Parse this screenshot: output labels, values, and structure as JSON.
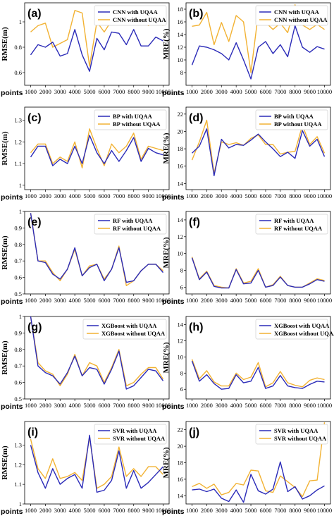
{
  "colors": {
    "with": "#2b2bb8",
    "without": "#f2b233"
  },
  "chart_data": [
    {
      "type": "line",
      "label": "(a)",
      "ylabel": "RMSE(m)",
      "xlabel": "points",
      "x": [
        1000,
        1500,
        2000,
        2500,
        3000,
        3500,
        4000,
        4500,
        5000,
        5500,
        6000,
        6500,
        7000,
        7500,
        8000,
        8500,
        9000,
        9500,
        10000
      ],
      "xticks": [
        1000,
        2000,
        3000,
        4000,
        5000,
        6000,
        7000,
        8000,
        9000,
        10000
      ],
      "ylim": [
        0.5,
        1.15
      ],
      "yticks": [
        0.6,
        0.8,
        1.0
      ],
      "legend": "top-right",
      "series": [
        {
          "name": "CNN with UQAA",
          "color_key": "with",
          "values": [
            0.74,
            0.82,
            0.8,
            0.84,
            0.73,
            0.75,
            0.94,
            0.74,
            0.61,
            0.87,
            0.78,
            0.92,
            0.91,
            0.82,
            0.94,
            0.81,
            0.81,
            0.88,
            0.85
          ]
        },
        {
          "name": "CNN without UQAA",
          "color_key": "without",
          "values": [
            0.92,
            0.97,
            0.99,
            0.8,
            0.83,
            0.86,
            1.09,
            1.07,
            0.65,
            1.0,
            0.92,
            1.01,
            0.99,
            0.98,
            1.08,
            1.03,
            0.97,
            1.02,
            0.97
          ]
        }
      ]
    },
    {
      "type": "line",
      "label": "(b)",
      "ylabel": "MRE(%)",
      "xlabel": "points",
      "x": [
        1000,
        1500,
        2000,
        2500,
        3000,
        3500,
        4000,
        4500,
        5000,
        5500,
        6000,
        6500,
        7000,
        7500,
        8000,
        8500,
        9000,
        9500,
        10000
      ],
      "xticks": [
        1000,
        2000,
        3000,
        4000,
        5000,
        6000,
        7000,
        8000,
        9000,
        10000
      ],
      "ylim": [
        6,
        19
      ],
      "yticks": [
        8,
        10,
        12,
        14,
        16,
        18
      ],
      "legend": "top-right",
      "series": [
        {
          "name": "CNN with UQAA",
          "color_key": "with",
          "values": [
            9.2,
            12.2,
            12.0,
            11.6,
            11.0,
            10.0,
            12.7,
            10.0,
            7.0,
            12.0,
            12.9,
            11.0,
            12.4,
            10.5,
            15.4,
            12.0,
            11.2,
            12.1,
            11.7
          ]
        },
        {
          "name": "CNN without UQAA",
          "color_key": "without",
          "values": [
            15.3,
            15.5,
            17.5,
            12.4,
            15.9,
            12.9,
            17.0,
            16.0,
            8.0,
            17.3,
            15.9,
            14.8,
            15.8,
            14.3,
            18.7,
            15.5,
            14.8,
            15.6,
            14.8
          ]
        }
      ]
    },
    {
      "type": "line",
      "label": "(c)",
      "ylabel": "RMSE(m)",
      "xlabel": "points",
      "x": [
        1000,
        1500,
        2000,
        2500,
        3000,
        3500,
        4000,
        4500,
        5000,
        5500,
        6000,
        6500,
        7000,
        7500,
        8000,
        8500,
        9000,
        9500,
        10000
      ],
      "xticks": [
        1000,
        2000,
        3000,
        4000,
        5000,
        6000,
        7000,
        8000,
        9000,
        10000
      ],
      "ylim": [
        0.98,
        1.36
      ],
      "yticks": [
        1.0,
        1.1,
        1.2,
        1.3
      ],
      "legend": "top-right",
      "series": [
        {
          "name": "BP with UQAA",
          "color_key": "with",
          "values": [
            1.13,
            1.18,
            1.18,
            1.09,
            1.12,
            1.1,
            1.18,
            1.1,
            1.23,
            1.15,
            1.1,
            1.16,
            1.11,
            1.16,
            1.22,
            1.11,
            1.17,
            1.15,
            1.14
          ]
        },
        {
          "name": "BP without UQAA",
          "color_key": "without",
          "values": [
            1.15,
            1.19,
            1.19,
            1.1,
            1.13,
            1.11,
            1.2,
            1.08,
            1.26,
            1.17,
            1.09,
            1.19,
            1.15,
            1.18,
            1.24,
            1.12,
            1.18,
            1.17,
            1.16
          ]
        }
      ]
    },
    {
      "type": "line",
      "label": "(d)",
      "ylabel": "MRE(%)",
      "xlabel": "points",
      "x": [
        1000,
        1500,
        2000,
        2500,
        3000,
        3500,
        4000,
        4500,
        5000,
        5500,
        6000,
        6500,
        7000,
        7500,
        8000,
        8500,
        9000,
        9500,
        10000
      ],
      "xticks": [
        1000,
        2000,
        3000,
        4000,
        5000,
        6000,
        7000,
        8000,
        9000,
        10000
      ],
      "ylim": [
        13.3,
        22.8
      ],
      "yticks": [
        14,
        16,
        18,
        20,
        22
      ],
      "legend": "top-right",
      "series": [
        {
          "name": "BP with UQAA",
          "color_key": "with",
          "values": [
            17.5,
            18.3,
            20.3,
            14.9,
            19.1,
            18.1,
            18.5,
            18.4,
            19.0,
            19.7,
            18.8,
            18.0,
            17.1,
            17.6,
            16.9,
            20.1,
            18.3,
            19.1,
            17.1
          ]
        },
        {
          "name": "BP without UQAA",
          "color_key": "without",
          "values": [
            16.7,
            18.8,
            21.3,
            15.2,
            18.8,
            18.5,
            18.7,
            18.4,
            19.2,
            19.6,
            18.5,
            18.5,
            17.4,
            17.6,
            17.7,
            20.7,
            18.5,
            19.4,
            17.5
          ]
        }
      ]
    },
    {
      "type": "line",
      "label": "(e)",
      "ylabel": "RMSE(m)",
      "xlabel": "points",
      "x": [
        1000,
        1500,
        2000,
        2500,
        3000,
        3500,
        4000,
        4500,
        5000,
        5500,
        6000,
        6500,
        7000,
        7500,
        8000,
        8500,
        9000,
        9500,
        10000
      ],
      "xticks": [
        1000,
        2000,
        3000,
        4000,
        5000,
        6000,
        7000,
        8000,
        9000,
        10000
      ],
      "ylim": [
        0.5,
        1.0
      ],
      "yticks": [
        0.5,
        0.6,
        0.7,
        0.8,
        0.9,
        1.0
      ],
      "legend": "top-right",
      "series": [
        {
          "name": "RF with UQAA",
          "color_key": "with",
          "values": [
            0.99,
            0.7,
            0.69,
            0.62,
            0.59,
            0.65,
            0.78,
            0.61,
            0.66,
            0.68,
            0.58,
            0.65,
            0.78,
            0.57,
            0.58,
            0.64,
            0.68,
            0.68,
            0.63
          ]
        },
        {
          "name": "RF without UQAA",
          "color_key": "without",
          "values": [
            0.99,
            0.7,
            0.7,
            0.63,
            0.58,
            0.65,
            0.77,
            0.61,
            0.67,
            0.68,
            0.59,
            0.65,
            0.79,
            0.55,
            0.58,
            0.64,
            0.68,
            0.68,
            0.64
          ]
        }
      ]
    },
    {
      "type": "line",
      "label": "(f)",
      "ylabel": "MRE(%)",
      "xlabel": "points",
      "x": [
        1000,
        1500,
        2000,
        2500,
        3000,
        3500,
        4000,
        4500,
        5000,
        5500,
        6000,
        6500,
        7000,
        7500,
        8000,
        8500,
        9000,
        9500,
        10000
      ],
      "xticks": [
        1000,
        2000,
        3000,
        4000,
        5000,
        6000,
        7000,
        8000,
        9000,
        10000
      ],
      "ylim": [
        5.2,
        15.0
      ],
      "yticks": [
        6,
        8,
        10,
        12,
        14
      ],
      "legend": "top-right",
      "series": [
        {
          "name": "RF with UQAA",
          "color_key": "with",
          "values": [
            9.5,
            6.9,
            7.8,
            6.1,
            5.9,
            5.9,
            8.1,
            6.4,
            6.5,
            8.0,
            6.0,
            6.2,
            7.2,
            6.2,
            6.0,
            6.0,
            6.4,
            6.9,
            6.7
          ]
        },
        {
          "name": "RF without UQAA",
          "color_key": "without",
          "values": [
            9.6,
            7.0,
            7.9,
            6.2,
            6.0,
            5.9,
            8.2,
            6.5,
            6.7,
            8.2,
            6.0,
            6.3,
            7.3,
            6.2,
            6.0,
            6.0,
            6.5,
            7.0,
            6.8
          ]
        }
      ]
    },
    {
      "type": "line",
      "label": "(g)",
      "ylabel": "RMSE(m)",
      "xlabel": "points",
      "x": [
        1000,
        1500,
        2000,
        2500,
        3000,
        3500,
        4000,
        4500,
        5000,
        5500,
        6000,
        6500,
        7000,
        7500,
        8000,
        8500,
        9000,
        9500,
        10000
      ],
      "xticks": [
        1000,
        2000,
        3000,
        4000,
        5000,
        6000,
        7000,
        8000,
        9000,
        10000
      ],
      "ylim": [
        0.5,
        1.0
      ],
      "yticks": [
        0.5,
        0.6,
        0.7,
        0.8,
        0.9,
        1.0
      ],
      "legend": "top-right",
      "series": [
        {
          "name": "XGBoost with UQAA",
          "color_key": "with",
          "values": [
            1.0,
            0.7,
            0.66,
            0.64,
            0.59,
            0.66,
            0.76,
            0.64,
            0.69,
            0.68,
            0.59,
            0.68,
            0.79,
            0.56,
            0.58,
            0.63,
            0.68,
            0.67,
            0.61
          ]
        },
        {
          "name": "XGBoost without UQAA",
          "color_key": "without",
          "values": [
            1.0,
            0.72,
            0.67,
            0.65,
            0.58,
            0.65,
            0.77,
            0.64,
            0.72,
            0.7,
            0.6,
            0.69,
            0.8,
            0.58,
            0.6,
            0.65,
            0.69,
            0.69,
            0.62
          ]
        }
      ]
    },
    {
      "type": "line",
      "label": "(h)",
      "ylabel": "MRE(%)",
      "xlabel": "points",
      "x": [
        1000,
        1500,
        2000,
        2500,
        3000,
        3500,
        4000,
        4500,
        5000,
        5500,
        6000,
        6500,
        7000,
        7500,
        8000,
        8500,
        9000,
        9500,
        10000
      ],
      "xticks": [
        1000,
        2000,
        3000,
        4000,
        5000,
        6000,
        7000,
        8000,
        9000,
        10000
      ],
      "ylim": [
        4.8,
        15.0
      ],
      "yticks": [
        6,
        8,
        10,
        12,
        14
      ],
      "legend": "top-right",
      "series": [
        {
          "name": "XGBoost with UQAA",
          "color_key": "with",
          "values": [
            9.5,
            7.0,
            7.8,
            6.7,
            6.0,
            6.1,
            7.8,
            6.8,
            7.0,
            8.7,
            6.1,
            6.4,
            7.7,
            6.4,
            6.2,
            6.1,
            6.6,
            7.0,
            6.9
          ]
        },
        {
          "name": "XGBoost without UQAA",
          "color_key": "without",
          "values": [
            9.7,
            7.3,
            8.3,
            6.9,
            6.4,
            6.4,
            8.0,
            7.2,
            7.5,
            9.3,
            6.3,
            6.8,
            8.2,
            6.8,
            6.5,
            6.3,
            7.1,
            7.4,
            7.2
          ]
        }
      ]
    },
    {
      "type": "line",
      "label": "(i)",
      "ylabel": "RMSE(m)",
      "xlabel": "points",
      "x": [
        1000,
        1500,
        2000,
        2500,
        3000,
        3500,
        4000,
        4500,
        5000,
        5500,
        6000,
        6500,
        7000,
        7500,
        8000,
        8500,
        9000,
        9500,
        10000
      ],
      "xticks": [
        1000,
        2000,
        3000,
        4000,
        5000,
        6000,
        7000,
        8000,
        9000,
        10000
      ],
      "ylim": [
        1.0,
        1.42
      ],
      "yticks": [
        1.0,
        1.1,
        1.2,
        1.3
      ],
      "legend": "top-right",
      "series": [
        {
          "name": "SVR with UQAA",
          "color_key": "with",
          "values": [
            1.3,
            1.16,
            1.08,
            1.18,
            1.1,
            1.13,
            1.15,
            1.08,
            1.35,
            1.06,
            1.07,
            1.12,
            1.27,
            1.08,
            1.17,
            1.08,
            1.11,
            1.15,
            1.19
          ]
        },
        {
          "name": "SVR without UQAA",
          "color_key": "without",
          "values": [
            1.33,
            1.18,
            1.13,
            1.23,
            1.13,
            1.14,
            1.16,
            1.12,
            1.34,
            1.08,
            1.1,
            1.14,
            1.29,
            1.14,
            1.18,
            1.14,
            1.19,
            1.19,
            1.15
          ]
        }
      ]
    },
    {
      "type": "line",
      "label": "(j)",
      "ylabel": "MRE(%)",
      "xlabel": "points",
      "x": [
        1000,
        1500,
        2000,
        2500,
        3000,
        3500,
        4000,
        4500,
        5000,
        5500,
        6000,
        6500,
        7000,
        7500,
        8000,
        8500,
        9000,
        9500,
        10000
      ],
      "xticks": [
        1000,
        2000,
        3000,
        4000,
        5000,
        6000,
        7000,
        8000,
        9000,
        10000
      ],
      "ylim": [
        13.0,
        23.0
      ],
      "yticks": [
        14,
        16,
        18,
        20,
        22
      ],
      "legend": "top-right",
      "series": [
        {
          "name": "SVR with UQAA",
          "color_key": "with",
          "values": [
            14.7,
            14.8,
            14.5,
            14.8,
            13.7,
            13.3,
            14.7,
            13.2,
            16.6,
            14.6,
            14.2,
            14.8,
            18.1,
            14.5,
            15.1,
            13.6,
            14.0,
            14.7,
            15.2
          ]
        },
        {
          "name": "SVR without UQAA",
          "color_key": "without",
          "values": [
            15.1,
            15.5,
            14.9,
            15.4,
            14.1,
            14.4,
            15.5,
            15.3,
            17.1,
            17.0,
            14.6,
            14.4,
            16.4,
            15.7,
            15.0,
            13.9,
            15.8,
            15.9,
            22.9
          ]
        }
      ]
    }
  ]
}
